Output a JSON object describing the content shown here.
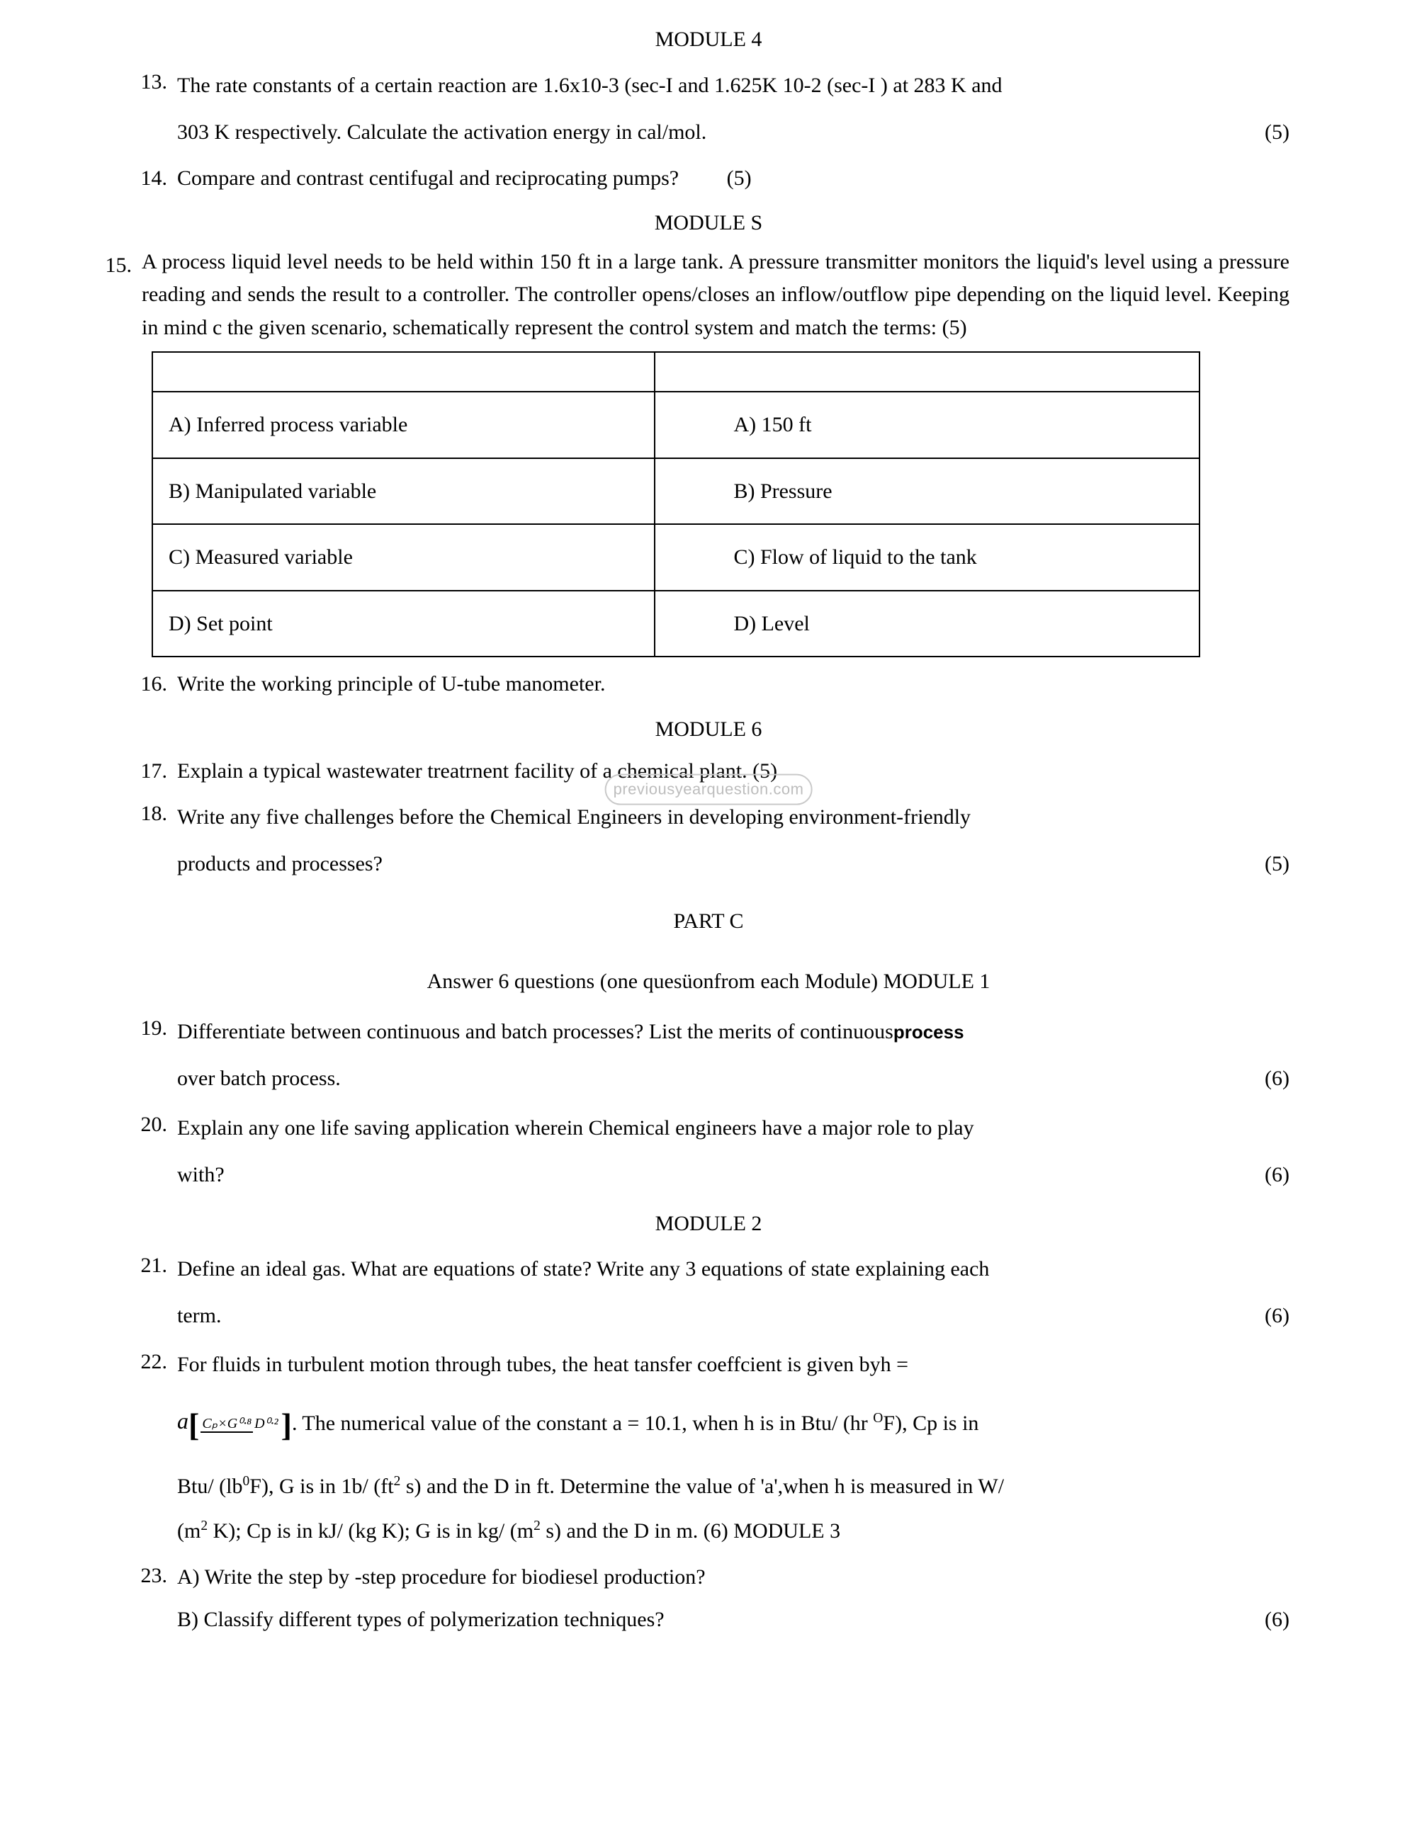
{
  "modules": {
    "m4": "MODULE 4",
    "mS": "MODULE S",
    "m6": "MODULE 6",
    "m2": "MODULE 2",
    "m1_inline": "MODULE 1",
    "m3_inline": "MODULE 3"
  },
  "partC": "PART C",
  "answer_instruction": "Answer 6 questions (one quesüonfrom each Module)  MODULE 1",
  "watermark": "previousyearquestion.com",
  "q13": {
    "num": "13.",
    "line1": "The rate constants of a certain reaction are 1.6x10-3 (sec-I and 1.625K 10-2 (sec-I ) at 283 K and",
    "line2": "303 K respectively. Calculate the activation energy in cal/mol.",
    "marks": "(5)"
  },
  "q14": {
    "num": "14.",
    "text": "Compare and contrast centifugal and reciprocating pumps?",
    "marks": "(5)"
  },
  "q15": {
    "num": "15.",
    "text": "A process liquid level needs to be held within 150 ft in a large tank. A pressure transmitter monitors the liquid's level using a pressure reading and sends the result to a controller. The controller opens/closes an inflow/outflow pipe depending on the liquid level. Keeping in mind c the given scenario, schematically represent the control system and match the terms: (5)"
  },
  "table": {
    "r1c1": "A) Inferred process variable",
    "r1c2": "A) 150 ft",
    "r2c1": "B) Manipulated variable",
    "r2c2": "B) Pressure",
    "r3c1": "C) Measured variable",
    "r3c2": "C) Flow of liquid to the tank",
    "r4c1": "D) Set point",
    "r4c2": "D) Level"
  },
  "q16": {
    "num": "16.",
    "text": "Write the working principle of U-tube manometer."
  },
  "q17": {
    "num": "17.",
    "text": "Explain a typical wastewater treatrnent facility of a chemical plant.  (5)"
  },
  "q18": {
    "num": "18.",
    "line1": "Write any five challenges before the Chemical Engineers in developing environment-friendly",
    "line2": "products and processes?",
    "marks": "(5)"
  },
  "q19": {
    "num": "19.",
    "line1a": "Differentiate between continuous and batch processes? List the merits of continuous",
    "line1b": "process",
    "line2": "over batch process.",
    "marks": "(6)"
  },
  "q20": {
    "num": "20.",
    "line1": "Explain any one life saving application wherein Chemical engineers have a major role to play",
    "line2": "with?",
    "marks": "(6)"
  },
  "q21": {
    "num": "21.",
    "line1": "Define an ideal gas. What are equations of state? Write any 3 equations of state explaining each",
    "line2": "term.",
    "marks": "(6)"
  },
  "q22": {
    "num": "22.",
    "line1": "For fluids in turbulent motion through tubes, the heat tansfer coeffcient is given byh =",
    "formula_num": "Cₚ×G⁰·⁸",
    "formula_den": "D⁰·²",
    "line2a": ". The numerical value of the constant a = 10.1, when h is in Btu/ (hr ",
    "line2b": "F), Cp is in",
    "line3a": "Btu/ (lb",
    "line3b": "F), G is in 1b/ (ft",
    "line3c": " s) and the D in ft. Determine the value of 'a',when h is measured in W/",
    "line4a": "(m",
    "line4b": " K); Cp is in kJ/ (kg K); G is in kg/ (m",
    "line4c": " s) and the D in m. (6) MODULE 3"
  },
  "q23": {
    "num": "23.",
    "lineA": "A) Write the step by -step procedure for biodiesel production?",
    "lineB": "B) Classify different types of polymerization techniques?",
    "marks": "(6)"
  }
}
